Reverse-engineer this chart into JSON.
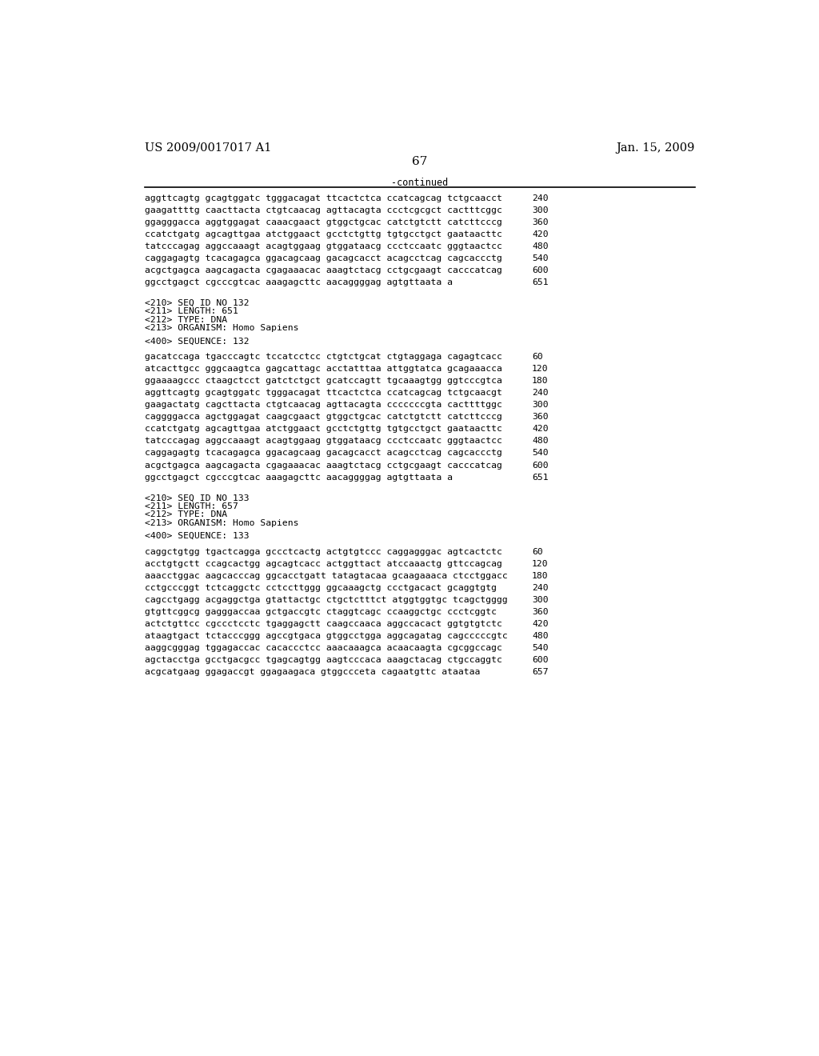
{
  "header_left": "US 2009/0017017 A1",
  "header_right": "Jan. 15, 2009",
  "page_number": "67",
  "continued_label": "-continued",
  "background_color": "#ffffff",
  "text_color": "#000000",
  "sections": [
    {
      "type": "sequence_data",
      "lines": [
        {
          "text": "aggttcagtg gcagtggatc tgggacagat ttcactctca ccatcagcag tctgcaacct",
          "num": "240"
        },
        {
          "text": "gaagattttg caacttacta ctgtcaacag agttacagta ccctcgcgct cactttcggc",
          "num": "300"
        },
        {
          "text": "ggagggacca aggtggagat caaacgaact gtggctgcac catctgtctt catcttcccg",
          "num": "360"
        },
        {
          "text": "ccatctgatg agcagttgaa atctggaact gcctctgttg tgtgcctgct gaataacttc",
          "num": "420"
        },
        {
          "text": "tatcccagag aggccaaagt acagtggaag gtggataacg ccctccaatc gggtaactcc",
          "num": "480"
        },
        {
          "text": "caggagagtg tcacagagca ggacagcaag gacagcacct acagcctcag cagcaccctg",
          "num": "540"
        },
        {
          "text": "acgctgagca aagcagacta cgagaaacac aaagtctacg cctgcgaagt cacccatcag",
          "num": "600"
        },
        {
          "text": "ggcctgagct cgcccgtcac aaagagcttc aacaggggag agtgttaata a",
          "num": "651"
        }
      ]
    },
    {
      "type": "metadata",
      "lines": [
        "<210> SEQ ID NO 132",
        "<211> LENGTH: 651",
        "<212> TYPE: DNA",
        "<213> ORGANISM: Homo Sapiens"
      ]
    },
    {
      "type": "sequence_label",
      "text": "<400> SEQUENCE: 132"
    },
    {
      "type": "sequence_data",
      "lines": [
        {
          "text": "gacatccaga tgacccagtc tccatcctcc ctgtctgcat ctgtaggaga cagagtcacc",
          "num": "60"
        },
        {
          "text": "atcacttgcc gggcaagtca gagcattagc acctatttaa attggtatca gcagaaacca",
          "num": "120"
        },
        {
          "text": "ggaaaagccc ctaagctcct gatctctgct gcatccagtt tgcaaagtgg ggtcccgtca",
          "num": "180"
        },
        {
          "text": "aggttcagtg gcagtggatc tgggacagat ttcactctca ccatcagcag tctgcaacgt",
          "num": "240"
        },
        {
          "text": "gaagactatg cagcttacta ctgtcaacag agttacagta cccccccgta cacttttggc",
          "num": "300"
        },
        {
          "text": "caggggacca agctggagat caagcgaact gtggctgcac catctgtctt catcttcccg",
          "num": "360"
        },
        {
          "text": "ccatctgatg agcagttgaa atctggaact gcctctgttg tgtgcctgct gaataacttc",
          "num": "420"
        },
        {
          "text": "tatcccagag aggccaaagt acagtggaag gtggataacg ccctccaatc gggtaactcc",
          "num": "480"
        },
        {
          "text": "caggagagtg tcacagagca ggacagcaag gacagcacct acagcctcag cagcaccctg",
          "num": "540"
        },
        {
          "text": "acgctgagca aagcagacta cgagaaacac aaagtctacg cctgcgaagt cacccatcag",
          "num": "600"
        },
        {
          "text": "ggcctgagct cgcccgtcac aaagagcttc aacaggggag agtgttaata a",
          "num": "651"
        }
      ]
    },
    {
      "type": "metadata",
      "lines": [
        "<210> SEQ ID NO 133",
        "<211> LENGTH: 657",
        "<212> TYPE: DNA",
        "<213> ORGANISM: Homo Sapiens"
      ]
    },
    {
      "type": "sequence_label",
      "text": "<400> SEQUENCE: 133"
    },
    {
      "type": "sequence_data",
      "lines": [
        {
          "text": "caggctgtgg tgactcagga gccctcactg actgtgtccc caggagggac agtcactctc",
          "num": "60"
        },
        {
          "text": "acctgtgctt ccagcactgg agcagtcacc actggttact atccaaactg gttccagcag",
          "num": "120"
        },
        {
          "text": "aaacctggac aagcacccag ggcacctgatt tatagtacaa gcaagaaaca ctcctggacc",
          "num": "180"
        },
        {
          "text": "cctgcccggt tctcaggctc cctccttggg ggcaaagctg ccctgacact gcaggtgtg",
          "num": "240"
        },
        {
          "text": "cagcctgagg acgaggctga gtattactgc ctgctctttct atggtggtgc tcagctgggg",
          "num": "300"
        },
        {
          "text": "gtgttcggcg gagggaccaa gctgaccgtc ctaggtcagc ccaaggctgc ccctcggtc",
          "num": "360"
        },
        {
          "text": "actctgttcc cgccctcctc tgaggagctt caagccaaca aggccacact ggtgtgtctc",
          "num": "420"
        },
        {
          "text": "ataagtgact tctacccggg agccgtgaca gtggcctgga aggcagatag cagcccccgtc",
          "num": "480"
        },
        {
          "text": "aaggcgggag tggagaccac cacaccctcc aaacaaagca acaacaagta cgcggccagc",
          "num": "540"
        },
        {
          "text": "agctacctga gcctgacgcc tgagcagtgg aagtcccaca aaagctacag ctgccaggtc",
          "num": "600"
        },
        {
          "text": "acgcatgaag ggagaccgt ggagaagaca gtggccceta cagaatgttc ataataa",
          "num": "657"
        }
      ]
    }
  ]
}
